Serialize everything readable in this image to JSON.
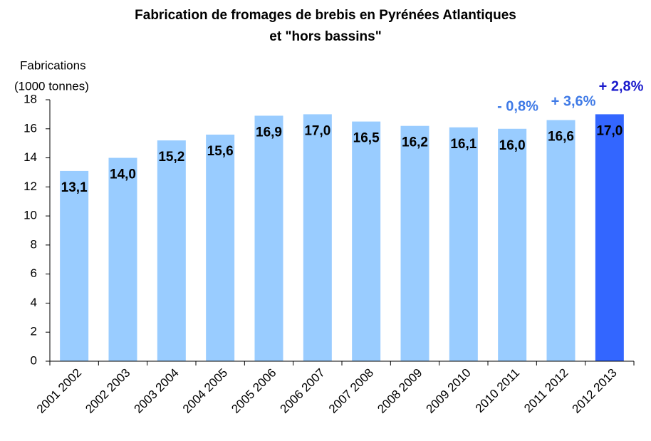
{
  "chart_data": {
    "type": "bar",
    "title": [
      "Fabrication de fromages de brebis en Pyrénées Atlantiques",
      "et \"hors bassins\""
    ],
    "y_label": [
      "Fabrications",
      "(1000 tonnes)"
    ],
    "categories": [
      "2001 2002",
      "2002 2003",
      "2003 2004",
      "2004 2005",
      "2005 2006",
      "2006 2007",
      "2007 2008",
      "2008 2009",
      "2009 2010",
      "2010 2011",
      "2011 2012",
      "2012 2013"
    ],
    "values": [
      13.1,
      14.0,
      15.2,
      15.6,
      16.9,
      17.0,
      16.5,
      16.2,
      16.1,
      16.0,
      16.6,
      17.0
    ],
    "value_labels": [
      "13,1",
      "14,0",
      "15,2",
      "15,6",
      "16,9",
      "17,0",
      "16,5",
      "16,2",
      "16,1",
      "16,0",
      "16,6",
      "17,0"
    ],
    "colors": [
      "#99ccff",
      "#99ccff",
      "#99ccff",
      "#99ccff",
      "#99ccff",
      "#99ccff",
      "#99ccff",
      "#99ccff",
      "#99ccff",
      "#99ccff",
      "#99ccff",
      "#3366ff"
    ],
    "annotations": [
      {
        "text": "- 0,8%",
        "color": "#3f7ae6"
      },
      {
        "text": "+ 3,6%",
        "color": "#3f7ae6"
      },
      {
        "text": "+ 2,8%",
        "color": "#1a1acc"
      }
    ],
    "ylim": [
      0,
      18
    ],
    "yticks": [
      0,
      2,
      4,
      6,
      8,
      10,
      12,
      14,
      16,
      18
    ]
  }
}
